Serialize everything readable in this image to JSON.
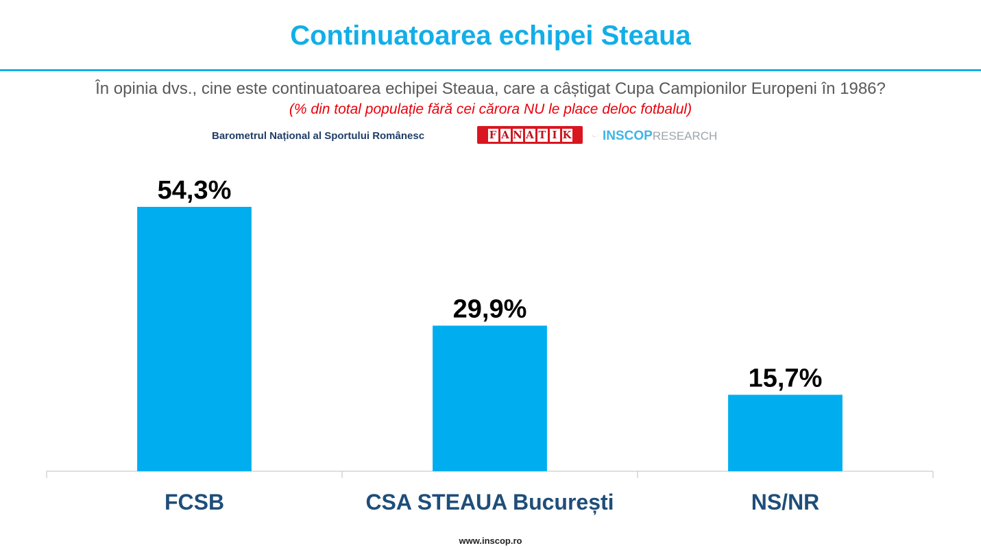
{
  "header": {
    "title": "Continuatoarea echipei Steaua",
    "question": "În opinia dvs., cine este continuatoarea echipei Steaua, care a câștigat Cupa Campionilor Europeni în 1986?",
    "note": "(% din total populație fără cei cărora NU le place deloc fotbalul)"
  },
  "sources": {
    "barometer": "Barometrul Național al Sportului Românesc",
    "fanatik_logo": "FANATIK",
    "inscop_name": "INSCOP",
    "inscop_sub": "RESEARCH"
  },
  "footer": {
    "url": "www.inscop.ro"
  },
  "colors": {
    "bar": "#00aeef",
    "title": "#12aee8",
    "category_label": "#1f4e79",
    "value_label": "#000000",
    "axis": "#bfbfbf"
  },
  "chart_data": {
    "type": "bar",
    "categories": [
      "FCSB",
      "CSA STEAUA București",
      "NS/NR"
    ],
    "values": [
      54.3,
      29.9,
      15.7
    ],
    "value_labels": [
      "54,3%",
      "29,9%",
      "15,7%"
    ],
    "ylim": [
      0,
      60
    ],
    "grid": false,
    "legend": "none"
  }
}
